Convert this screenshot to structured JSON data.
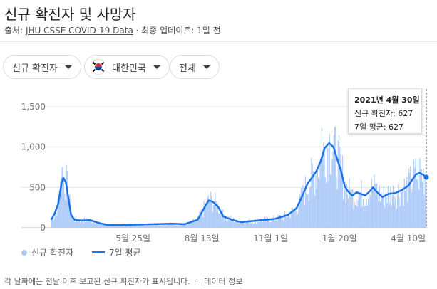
{
  "header": {
    "title": "신규 확진자 및 사망자",
    "source_prefix": "출처: ",
    "source_link": "JHU CSSE COVID-19 Data",
    "updated": " · 최종 업데이트: 1일 전"
  },
  "filters": {
    "metric": "신규 확진자",
    "country": "대한민국",
    "range": "전체"
  },
  "tooltip": {
    "date": "2021년 4월 30일",
    "cases": "신규 확진자: 627",
    "avg": "7일 평균: 627"
  },
  "legend": {
    "bars": "신규 확진자",
    "line": "7일 평균"
  },
  "footer": {
    "note": "각 날짜에는 전날 이후 보고된 신규 확진자가 표시됩니다.",
    "sep": "·",
    "link": "데이터 정보"
  },
  "colors": {
    "bars": "#aecbfa",
    "line": "#1a73e8",
    "grid": "#e8eaed"
  },
  "chart_data": {
    "type": "bar",
    "ylim": [
      0,
      1500
    ],
    "yticks": [
      "0",
      "500",
      "1,000",
      "1,500"
    ],
    "xticks": [
      {
        "label": "5월 25일",
        "day": 95
      },
      {
        "label": "8월 13일",
        "day": 175
      },
      {
        "label": "11월 1일",
        "day": 255
      },
      {
        "label": "1월 20일",
        "day": 335
      },
      {
        "label": "4월 10일",
        "day": 415
      }
    ],
    "days_total": 436,
    "series": [
      {
        "name": "신규 확진자",
        "kind": "bar"
      },
      {
        "name": "7일 평균",
        "kind": "line"
      }
    ],
    "avg_points": [
      [
        0,
        100
      ],
      [
        4,
        180
      ],
      [
        8,
        300
      ],
      [
        12,
        560
      ],
      [
        14,
        620
      ],
      [
        17,
        560
      ],
      [
        20,
        360
      ],
      [
        23,
        160
      ],
      [
        27,
        100
      ],
      [
        35,
        90
      ],
      [
        45,
        95
      ],
      [
        55,
        60
      ],
      [
        65,
        35
      ],
      [
        80,
        35
      ],
      [
        100,
        40
      ],
      [
        120,
        45
      ],
      [
        140,
        50
      ],
      [
        155,
        45
      ],
      [
        170,
        100
      ],
      [
        178,
        250
      ],
      [
        183,
        340
      ],
      [
        188,
        320
      ],
      [
        194,
        260
      ],
      [
        200,
        140
      ],
      [
        210,
        100
      ],
      [
        220,
        70
      ],
      [
        240,
        90
      ],
      [
        260,
        110
      ],
      [
        275,
        160
      ],
      [
        285,
        240
      ],
      [
        292,
        400
      ],
      [
        298,
        550
      ],
      [
        303,
        620
      ],
      [
        308,
        700
      ],
      [
        313,
        820
      ],
      [
        318,
        990
      ],
      [
        323,
        1050
      ],
      [
        328,
        1000
      ],
      [
        333,
        830
      ],
      [
        337,
        700
      ],
      [
        341,
        520
      ],
      [
        345,
        450
      ],
      [
        350,
        400
      ],
      [
        355,
        440
      ],
      [
        360,
        420
      ],
      [
        365,
        400
      ],
      [
        370,
        450
      ],
      [
        374,
        500
      ],
      [
        378,
        450
      ],
      [
        385,
        380
      ],
      [
        392,
        420
      ],
      [
        400,
        430
      ],
      [
        408,
        470
      ],
      [
        415,
        520
      ],
      [
        420,
        600
      ],
      [
        424,
        660
      ],
      [
        428,
        680
      ],
      [
        432,
        660
      ],
      [
        436,
        627
      ]
    ]
  }
}
